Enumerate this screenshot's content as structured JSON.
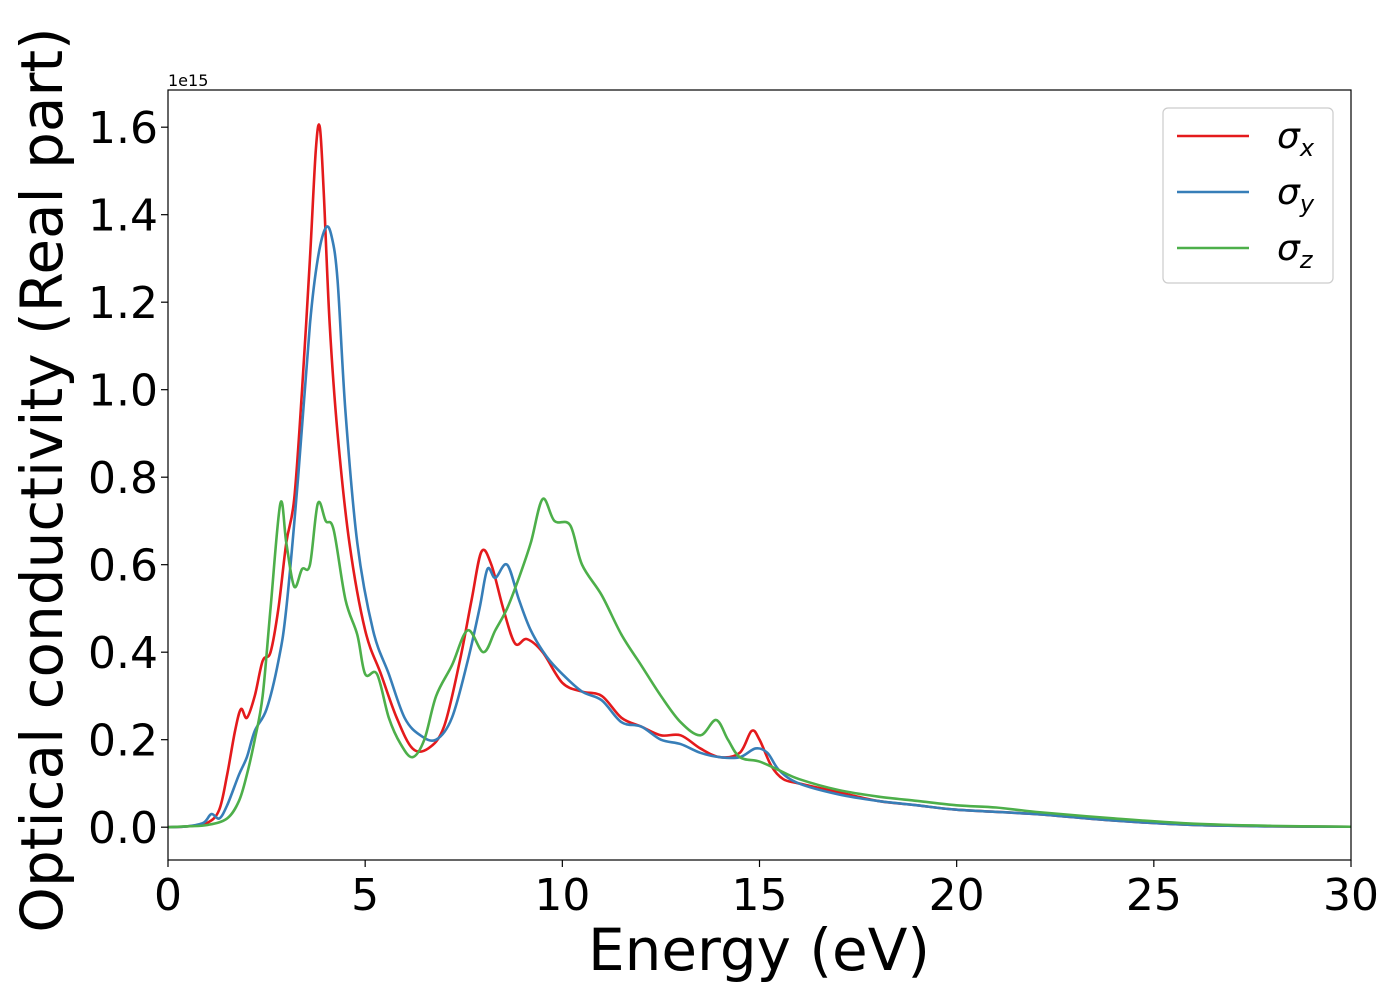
{
  "chart_data": {
    "type": "line",
    "xlabel": "Energy (eV)",
    "ylabel": "Optical conductivity (Real part)",
    "offset_text": "1e15",
    "xlim": [
      0,
      30
    ],
    "ylim": [
      -0.075,
      1.685
    ],
    "x_ticks": [
      0,
      5,
      10,
      15,
      20,
      25,
      30
    ],
    "x_tick_labels": [
      "0",
      "5",
      "10",
      "15",
      "20",
      "25",
      "30"
    ],
    "y_ticks": [
      0.0,
      0.2,
      0.4,
      0.6,
      0.8,
      1.0,
      1.2,
      1.4,
      1.6
    ],
    "y_tick_labels": [
      "0.0",
      "0.2",
      "0.4",
      "0.6",
      "0.8",
      "1.0",
      "1.2",
      "1.4",
      "1.6"
    ],
    "grid": false,
    "legend_position": "top-right",
    "series": [
      {
        "name": "σ",
        "subscript": "x",
        "color": "#e41a1c",
        "x": [
          0,
          0.5,
          1.0,
          1.3,
          1.5,
          1.7,
          1.85,
          2.0,
          2.2,
          2.4,
          2.6,
          2.8,
          3.0,
          3.2,
          3.4,
          3.6,
          3.75,
          3.85,
          3.95,
          4.1,
          4.3,
          4.6,
          5.0,
          5.4,
          5.8,
          6.2,
          6.6,
          7.0,
          7.4,
          7.7,
          7.95,
          8.2,
          8.5,
          8.8,
          9.1,
          9.5,
          10.0,
          10.5,
          11.0,
          11.5,
          12.0,
          12.5,
          13.0,
          13.5,
          14.0,
          14.5,
          14.8,
          15.0,
          15.3,
          15.6,
          16.0,
          17.0,
          18.0,
          19.0,
          20.0,
          22.0,
          24.0,
          26.0,
          28.0,
          30.0
        ],
        "values": [
          0,
          0.002,
          0.01,
          0.04,
          0.12,
          0.22,
          0.27,
          0.25,
          0.3,
          0.38,
          0.4,
          0.5,
          0.65,
          0.75,
          1.0,
          1.3,
          1.55,
          1.6,
          1.45,
          1.15,
          0.9,
          0.65,
          0.45,
          0.35,
          0.25,
          0.18,
          0.18,
          0.23,
          0.38,
          0.52,
          0.63,
          0.6,
          0.5,
          0.42,
          0.43,
          0.4,
          0.33,
          0.31,
          0.3,
          0.25,
          0.23,
          0.21,
          0.21,
          0.18,
          0.16,
          0.17,
          0.22,
          0.2,
          0.14,
          0.11,
          0.1,
          0.08,
          0.06,
          0.05,
          0.04,
          0.03,
          0.015,
          0.005,
          0.002,
          0.001
        ]
      },
      {
        "name": "σ",
        "subscript": "y",
        "color": "#377eb8",
        "x": [
          0,
          0.5,
          0.9,
          1.1,
          1.3,
          1.5,
          1.8,
          2.0,
          2.2,
          2.5,
          2.8,
          3.0,
          3.3,
          3.6,
          3.8,
          4.0,
          4.15,
          4.3,
          4.5,
          4.8,
          5.2,
          5.6,
          6.0,
          6.4,
          6.8,
          7.2,
          7.6,
          7.9,
          8.1,
          8.3,
          8.6,
          8.9,
          9.2,
          9.6,
          10.0,
          10.5,
          11.0,
          11.5,
          12.0,
          12.5,
          13.0,
          13.5,
          14.0,
          14.5,
          14.9,
          15.2,
          15.5,
          16.0,
          17.0,
          18.0,
          19.0,
          20.0,
          22.0,
          24.0,
          26.0,
          28.0,
          30.0
        ],
        "values": [
          0,
          0.002,
          0.01,
          0.03,
          0.02,
          0.05,
          0.12,
          0.16,
          0.22,
          0.27,
          0.38,
          0.5,
          0.8,
          1.15,
          1.3,
          1.37,
          1.35,
          1.25,
          0.95,
          0.65,
          0.45,
          0.35,
          0.25,
          0.21,
          0.2,
          0.25,
          0.38,
          0.5,
          0.59,
          0.57,
          0.6,
          0.52,
          0.45,
          0.39,
          0.35,
          0.31,
          0.29,
          0.24,
          0.23,
          0.2,
          0.19,
          0.17,
          0.16,
          0.16,
          0.18,
          0.17,
          0.13,
          0.1,
          0.075,
          0.06,
          0.05,
          0.04,
          0.03,
          0.015,
          0.005,
          0.002,
          0.001
        ]
      },
      {
        "name": "σ",
        "subscript": "z",
        "color": "#4daf4a",
        "x": [
          0,
          0.5,
          1.0,
          1.5,
          1.8,
          2.0,
          2.2,
          2.4,
          2.6,
          2.85,
          3.0,
          3.2,
          3.4,
          3.6,
          3.8,
          4.0,
          4.2,
          4.5,
          4.8,
          5.0,
          5.3,
          5.6,
          5.9,
          6.2,
          6.5,
          6.8,
          7.2,
          7.6,
          8.0,
          8.3,
          8.6,
          8.9,
          9.2,
          9.5,
          9.8,
          10.2,
          10.5,
          11.0,
          11.5,
          12.0,
          12.5,
          13.0,
          13.5,
          13.9,
          14.2,
          14.5,
          15.0,
          15.5,
          16.0,
          17.0,
          18.0,
          19.0,
          20.0,
          21.0,
          22.0,
          24.0,
          26.0,
          28.0,
          30.0
        ],
        "values": [
          0,
          0.002,
          0.005,
          0.02,
          0.06,
          0.12,
          0.2,
          0.3,
          0.5,
          0.74,
          0.65,
          0.55,
          0.59,
          0.6,
          0.74,
          0.7,
          0.68,
          0.52,
          0.44,
          0.35,
          0.35,
          0.25,
          0.19,
          0.16,
          0.2,
          0.3,
          0.37,
          0.45,
          0.4,
          0.45,
          0.5,
          0.57,
          0.65,
          0.75,
          0.7,
          0.69,
          0.6,
          0.53,
          0.44,
          0.37,
          0.3,
          0.24,
          0.21,
          0.245,
          0.2,
          0.16,
          0.15,
          0.13,
          0.11,
          0.085,
          0.07,
          0.06,
          0.05,
          0.045,
          0.035,
          0.02,
          0.008,
          0.003,
          0.001
        ]
      }
    ]
  }
}
